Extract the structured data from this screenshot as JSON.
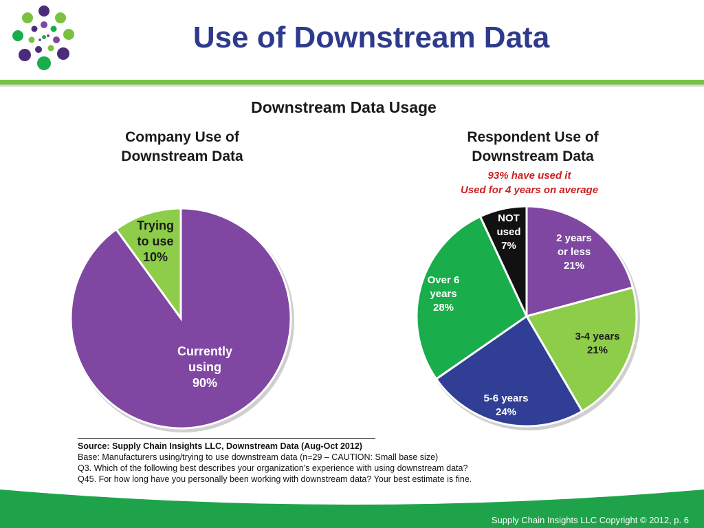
{
  "page": {
    "title": "Use of Downstream Data",
    "footer": "Supply Chain Insights LLC Copyright © 2012, p. 6"
  },
  "colors": {
    "title": "#2e3a8c",
    "purple": "#7f47a1",
    "light_green": "#8dcd4a",
    "green": "#1aad4b",
    "blue": "#303f95",
    "black": "#111111",
    "band_green": "#1fa34a",
    "accent_red": "#cc1f1f"
  },
  "chart_data": {
    "title": "Downstream Data Usage",
    "charts": [
      {
        "type": "pie",
        "title_line1": "Company Use of",
        "title_line2": "Downstream Data",
        "slices": [
          {
            "label_lines": [
              "Trying",
              "to use"
            ],
            "value": 10,
            "value_label": "10%",
            "color": "#8dcd4a",
            "label_color": "#1a1a1a"
          },
          {
            "label_lines": [
              "Currently",
              "using"
            ],
            "value": 90,
            "value_label": "90%",
            "color": "#7f47a1",
            "label_color": "#ffffff"
          }
        ]
      },
      {
        "type": "pie",
        "title_line1": "Respondent Use of",
        "title_line2": "Downstream Data",
        "note_line1": "93% have used it",
        "note_line2": "Used for 4 years on average",
        "slices": [
          {
            "label_lines": [
              "2 years",
              "or less"
            ],
            "value": 21,
            "value_label": "21%",
            "color": "#7f47a1",
            "label_color": "#ffffff"
          },
          {
            "label_lines": [
              "3-4 years"
            ],
            "value": 21,
            "value_label": "21%",
            "color": "#8dcd4a",
            "label_color": "#1a1a1a"
          },
          {
            "label_lines": [
              "5-6 years"
            ],
            "value": 24,
            "value_label": "24%",
            "color": "#303f95",
            "label_color": "#ffffff"
          },
          {
            "label_lines": [
              "Over 6",
              "years"
            ],
            "value": 28,
            "value_label": "28%",
            "color": "#1aad4b",
            "label_color": "#ffffff"
          },
          {
            "label_lines": [
              "NOT",
              "used"
            ],
            "value": 7,
            "value_label": "7%",
            "color": "#111111",
            "label_color": "#ffffff"
          }
        ]
      }
    ]
  },
  "source": {
    "line1_bold": "Source:  Supply Chain Insights LLC, Downstream Data (Aug-Oct 2012)",
    "line2": "Base:  Manufacturers using/trying to use downstream data (n=29 – CAUTION: Small base size)",
    "line3": "Q3. Which of the following best describes your organization’s experience with using downstream data?",
    "line4": "Q45. For how long have you personally been working with downstream data? Your best estimate is fine."
  }
}
